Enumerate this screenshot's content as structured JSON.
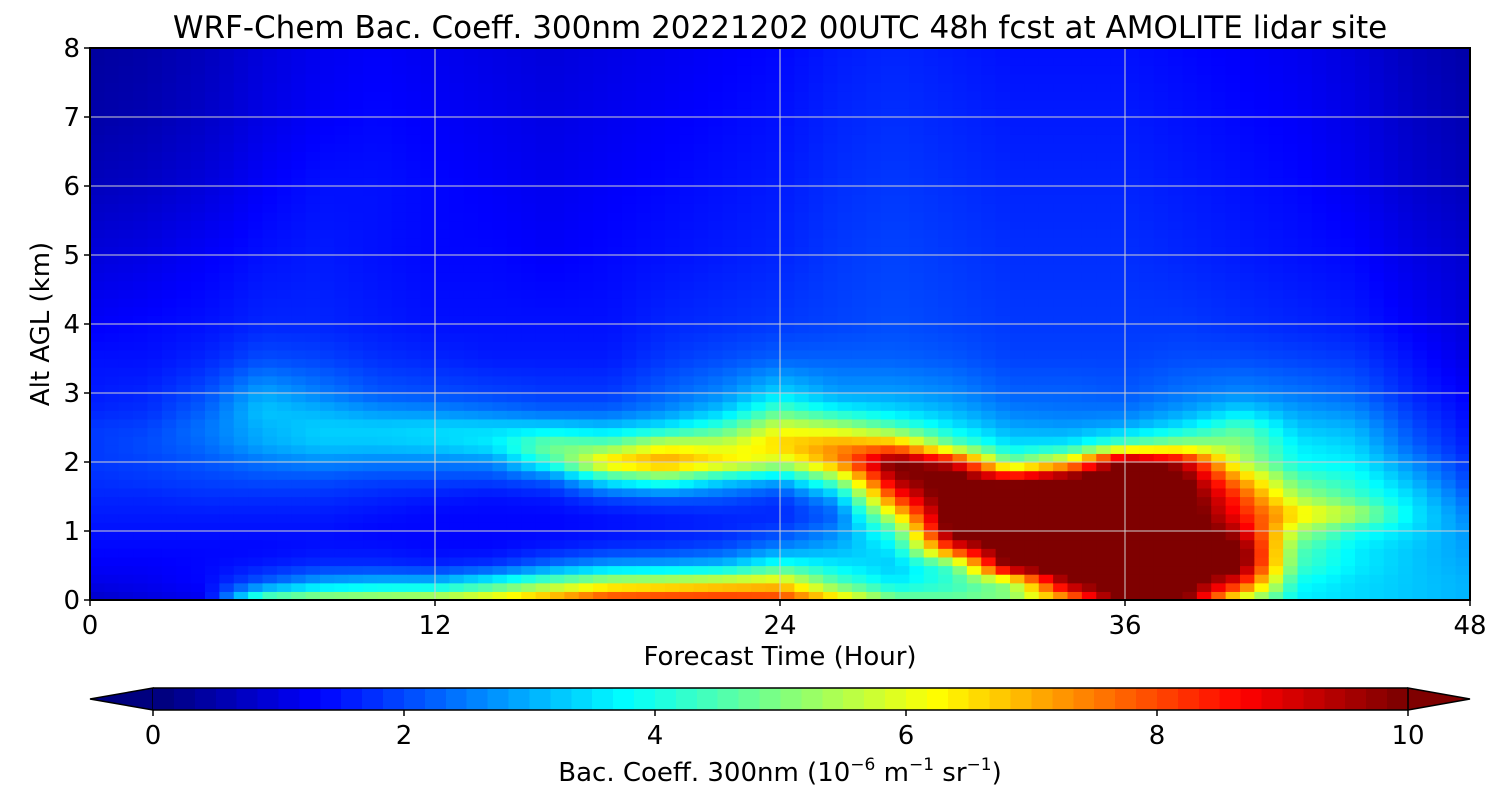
{
  "chart_data": {
    "type": "heatmap",
    "subtype": "filled-contour (time-height cross section)",
    "title": "WRF-Chem Bac. Coeff. 300nm  20221202 00UTC 48h fcst at AMOLITE lidar site",
    "xlabel": "Forecast Time (Hour)",
    "ylabel": "Alt AGL (km)",
    "xlim": [
      0,
      48
    ],
    "ylim": [
      0,
      8
    ],
    "xticks": [
      0,
      12,
      24,
      36,
      48
    ],
    "yticks": [
      0,
      1,
      2,
      3,
      4,
      5,
      6,
      7,
      8
    ],
    "grid": true,
    "colormap": "jet",
    "colorbar": {
      "orientation": "horizontal",
      "position": "bottom",
      "label_main": "Bac. Coeff. 300nm  (10",
      "label_exp1": "−6",
      "label_unit1": " m",
      "label_exp2": "−1",
      "label_unit2": " sr",
      "label_exp3": "−1",
      "label_close": ")",
      "range": [
        0,
        10
      ],
      "ticks": [
        0,
        2,
        4,
        6,
        8,
        10
      ],
      "extend": "both",
      "colors": {
        "under": "#00007f",
        "over": "#7f0000",
        "stops": [
          "#00007f",
          "#0000ff",
          "#0080ff",
          "#00ffff",
          "#80ff80",
          "#ffff00",
          "#ff8000",
          "#ff0000",
          "#7f0000"
        ]
      }
    },
    "x_hours": [
      0,
      2,
      4,
      6,
      8,
      10,
      12,
      14,
      16,
      18,
      20,
      22,
      24,
      26,
      28,
      30,
      32,
      34,
      36,
      38,
      40,
      42,
      44,
      46,
      48
    ],
    "z_km": [
      0,
      0.25,
      0.5,
      0.75,
      1.0,
      1.25,
      1.5,
      1.75,
      2.0,
      2.25,
      2.5,
      2.75,
      3.0,
      3.5,
      4.0,
      5.0,
      6.0,
      7.0,
      8.0
    ],
    "values_by_time": [
      [
        0.7,
        1.0,
        1.2,
        1.3,
        1.4,
        1.5,
        1.6,
        1.7,
        1.8,
        1.8,
        1.8,
        1.6,
        1.5,
        1.4,
        1.2,
        0.9,
        0.6,
        0.4,
        0.3
      ],
      [
        0.9,
        1.1,
        1.2,
        1.3,
        1.4,
        1.5,
        1.6,
        1.8,
        1.9,
        2.0,
        1.9,
        1.7,
        1.6,
        1.4,
        1.3,
        1.0,
        0.7,
        0.5,
        0.4
      ],
      [
        1.1,
        1.3,
        1.3,
        1.3,
        1.4,
        1.5,
        1.7,
        1.9,
        2.1,
        2.3,
        2.4,
        2.2,
        2.0,
        1.6,
        1.4,
        1.2,
        0.9,
        0.7,
        0.6
      ],
      [
        5.0,
        2.2,
        1.5,
        1.3,
        1.4,
        1.5,
        1.7,
        2.0,
        2.4,
        2.9,
        3.0,
        3.2,
        2.9,
        2.0,
        1.6,
        1.4,
        1.2,
        1.0,
        0.9
      ],
      [
        5.6,
        3.0,
        1.7,
        1.4,
        1.4,
        1.5,
        1.7,
        2.0,
        2.6,
        3.2,
        3.3,
        3.0,
        2.5,
        1.9,
        1.6,
        1.5,
        1.4,
        1.2,
        1.1
      ],
      [
        5.8,
        3.2,
        1.7,
        1.4,
        1.3,
        1.4,
        1.6,
        1.9,
        2.5,
        3.2,
        3.3,
        2.7,
        2.1,
        1.7,
        1.5,
        1.4,
        1.4,
        1.3,
        1.2
      ],
      [
        6.0,
        3.2,
        1.6,
        1.3,
        1.3,
        1.3,
        1.5,
        1.9,
        2.5,
        3.3,
        3.4,
        2.6,
        2.0,
        1.6,
        1.4,
        1.3,
        1.3,
        1.2,
        1.1
      ],
      [
        6.6,
        4.0,
        1.8,
        1.3,
        1.3,
        1.3,
        1.4,
        1.9,
        2.6,
        3.6,
        3.4,
        2.4,
        1.9,
        1.5,
        1.4,
        1.3,
        1.2,
        1.1,
        1.0
      ],
      [
        7.4,
        5.0,
        2.4,
        1.5,
        1.3,
        1.3,
        1.5,
        2.2,
        4.2,
        5.0,
        3.4,
        2.2,
        1.8,
        1.5,
        1.4,
        1.2,
        1.1,
        1.0,
        0.9
      ],
      [
        8.5,
        5.8,
        2.9,
        1.7,
        1.4,
        1.4,
        2.0,
        3.8,
        6.8,
        4.8,
        3.2,
        2.2,
        1.8,
        1.5,
        1.4,
        1.3,
        1.2,
        1.1,
        1.0
      ],
      [
        8.6,
        6.0,
        3.0,
        1.8,
        1.5,
        1.5,
        2.2,
        4.5,
        7.4,
        6.0,
        3.6,
        2.6,
        2.2,
        1.8,
        1.6,
        1.4,
        1.3,
        1.2,
        1.1
      ],
      [
        8.6,
        6.3,
        3.2,
        2.0,
        1.6,
        1.6,
        2.1,
        3.5,
        6.6,
        5.8,
        4.4,
        3.2,
        2.6,
        2.0,
        1.7,
        1.5,
        1.4,
        1.3,
        1.2
      ],
      [
        8.4,
        6.6,
        4.2,
        2.6,
        1.9,
        1.6,
        1.8,
        3.0,
        5.6,
        6.8,
        6.0,
        4.6,
        3.4,
        2.2,
        1.8,
        1.6,
        1.5,
        1.4,
        1.3
      ],
      [
        6.8,
        4.6,
        3.6,
        3.0,
        2.6,
        2.2,
        3.0,
        5.0,
        7.4,
        7.4,
        5.6,
        3.8,
        2.8,
        2.2,
        1.9,
        1.8,
        1.7,
        1.6,
        1.5
      ],
      [
        5.0,
        3.6,
        3.2,
        3.6,
        4.4,
        6.2,
        8.2,
        9.6,
        10.4,
        7.4,
        4.6,
        3.4,
        2.8,
        2.2,
        2.0,
        1.9,
        1.8,
        1.7,
        1.6
      ],
      [
        4.8,
        4.2,
        4.5,
        8.4,
        10.6,
        10.8,
        10.8,
        10.6,
        9.2,
        4.8,
        3.6,
        3.0,
        2.6,
        2.1,
        1.9,
        1.8,
        1.7,
        1.6,
        1.5
      ],
      [
        5.0,
        5.2,
        10.4,
        10.8,
        10.8,
        10.8,
        10.8,
        9.6,
        4.8,
        3.5,
        2.9,
        2.5,
        2.2,
        1.9,
        1.8,
        1.7,
        1.6,
        1.5,
        1.4
      ],
      [
        7.0,
        9.8,
        10.8,
        10.8,
        10.8,
        10.8,
        10.8,
        10.6,
        6.5,
        3.6,
        2.8,
        2.4,
        2.2,
        1.9,
        1.8,
        1.7,
        1.6,
        1.5,
        1.4
      ],
      [
        10.6,
        10.8,
        10.8,
        10.8,
        10.8,
        10.8,
        10.8,
        10.8,
        10.6,
        4.8,
        3.0,
        2.4,
        2.1,
        1.9,
        1.8,
        1.7,
        1.6,
        1.5,
        1.4
      ],
      [
        10.2,
        10.6,
        10.8,
        10.8,
        10.8,
        10.8,
        10.7,
        10.4,
        9.4,
        5.4,
        3.6,
        2.8,
        2.4,
        2.0,
        1.8,
        1.6,
        1.5,
        1.4,
        1.3
      ],
      [
        5.6,
        8.6,
        10.4,
        10.4,
        9.4,
        8.6,
        8.2,
        7.2,
        5.6,
        5.2,
        4.6,
        3.4,
        2.6,
        2.0,
        1.7,
        1.5,
        1.4,
        1.3,
        1.2
      ],
      [
        3.6,
        3.8,
        4.4,
        4.6,
        5.4,
        6.6,
        5.4,
        4.6,
        3.8,
        3.6,
        3.2,
        2.8,
        2.4,
        1.9,
        1.6,
        1.4,
        1.3,
        1.2,
        1.1
      ],
      [
        3.4,
        3.4,
        3.6,
        3.6,
        4.0,
        5.6,
        4.4,
        4.0,
        3.6,
        3.3,
        3.0,
        2.6,
        2.2,
        1.8,
        1.5,
        1.3,
        1.1,
        1.0,
        0.9
      ],
      [
        3.2,
        3.2,
        3.2,
        3.2,
        3.4,
        3.6,
        3.4,
        3.0,
        2.6,
        2.2,
        2.0,
        1.8,
        1.6,
        1.4,
        1.2,
        1.0,
        0.8,
        0.7,
        0.6
      ],
      [
        3.0,
        3.0,
        2.9,
        2.8,
        2.7,
        2.5,
        2.2,
        1.9,
        1.7,
        1.5,
        1.4,
        1.3,
        1.2,
        1.0,
        0.9,
        0.8,
        0.6,
        0.5,
        0.4
      ]
    ]
  }
}
